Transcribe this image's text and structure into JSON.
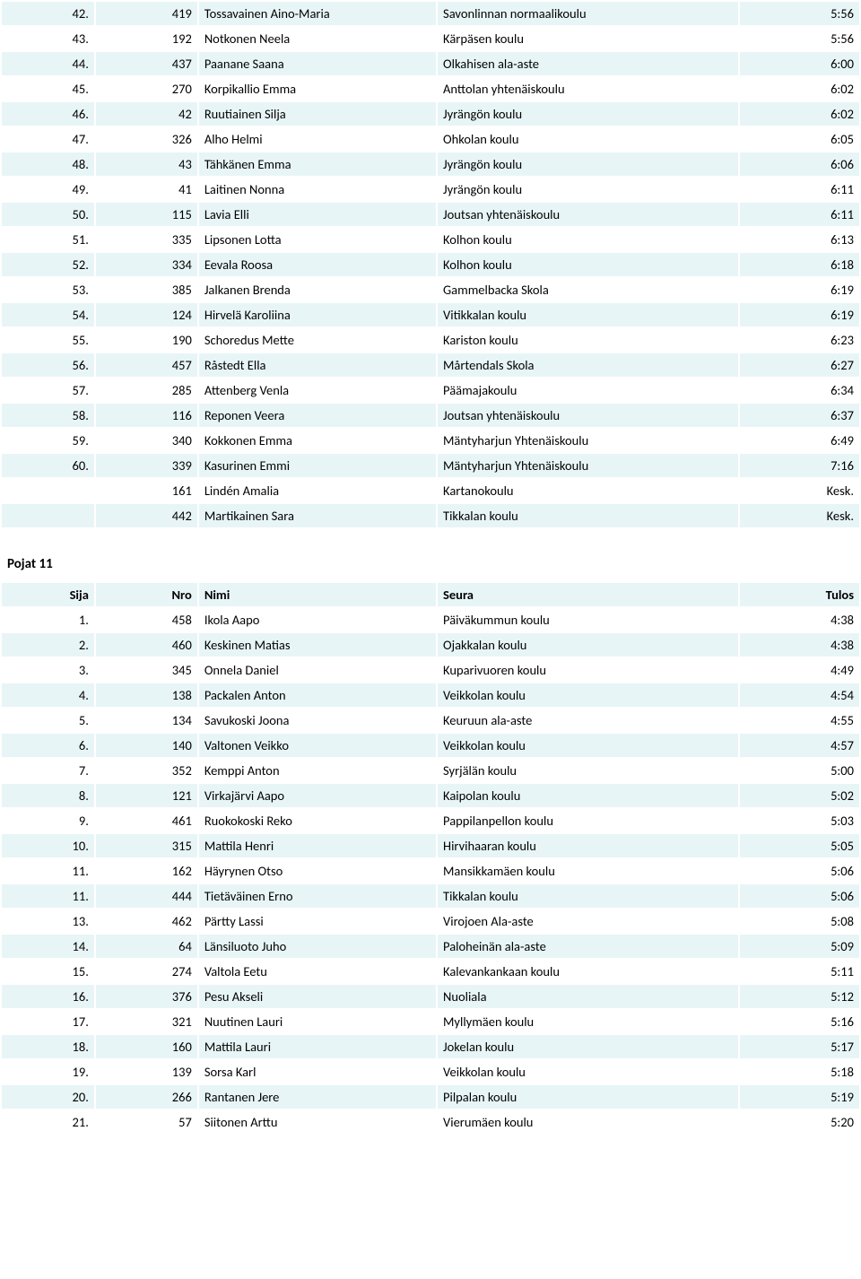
{
  "columns": {
    "sija": "Sija",
    "nro": "Nro",
    "nimi": "Nimi",
    "seura": "Seura",
    "tulos": "Tulos"
  },
  "section2_title": "Pojat 11",
  "table1": [
    {
      "sija": "42.",
      "nro": "419",
      "nimi": "Tossavainen Aino-Maria",
      "seura": "Savonlinnan normaalikoulu",
      "tulos": "5:56"
    },
    {
      "sija": "43.",
      "nro": "192",
      "nimi": "Notkonen Neela",
      "seura": "Kärpäsen koulu",
      "tulos": "5:56"
    },
    {
      "sija": "44.",
      "nro": "437",
      "nimi": "Paanane Saana",
      "seura": "Olkahisen ala-aste",
      "tulos": "6:00"
    },
    {
      "sija": "45.",
      "nro": "270",
      "nimi": "Korpikallio Emma",
      "seura": "Anttolan yhtenäiskoulu",
      "tulos": "6:02"
    },
    {
      "sija": "46.",
      "nro": "42",
      "nimi": "Ruutiainen Silja",
      "seura": "Jyrängön koulu",
      "tulos": "6:02"
    },
    {
      "sija": "47.",
      "nro": "326",
      "nimi": "Alho Helmi",
      "seura": "Ohkolan koulu",
      "tulos": "6:05"
    },
    {
      "sija": "48.",
      "nro": "43",
      "nimi": "Tähkänen Emma",
      "seura": "Jyrängön koulu",
      "tulos": "6:06"
    },
    {
      "sija": "49.",
      "nro": "41",
      "nimi": "Laitinen Nonna",
      "seura": "Jyrängön koulu",
      "tulos": "6:11"
    },
    {
      "sija": "50.",
      "nro": "115",
      "nimi": "Lavia Elli",
      "seura": "Joutsan yhtenäiskoulu",
      "tulos": "6:11"
    },
    {
      "sija": "51.",
      "nro": "335",
      "nimi": "Lipsonen Lotta",
      "seura": "Kolhon koulu",
      "tulos": "6:13"
    },
    {
      "sija": "52.",
      "nro": "334",
      "nimi": "Eevala Roosa",
      "seura": "Kolhon koulu",
      "tulos": "6:18"
    },
    {
      "sija": "53.",
      "nro": "385",
      "nimi": "Jalkanen Brenda",
      "seura": "Gammelbacka Skola",
      "tulos": "6:19"
    },
    {
      "sija": "54.",
      "nro": "124",
      "nimi": "Hirvelä Karoliina",
      "seura": "Vitikkalan koulu",
      "tulos": "6:19"
    },
    {
      "sija": "55.",
      "nro": "190",
      "nimi": "Schoredus Mette",
      "seura": "Kariston koulu",
      "tulos": "6:23"
    },
    {
      "sija": "56.",
      "nro": "457",
      "nimi": "Råstedt Ella",
      "seura": "Mårtendals Skola",
      "tulos": "6:27"
    },
    {
      "sija": "57.",
      "nro": "285",
      "nimi": "Attenberg Venla",
      "seura": "Päämajakoulu",
      "tulos": "6:34"
    },
    {
      "sija": "58.",
      "nro": "116",
      "nimi": "Reponen Veera",
      "seura": "Joutsan yhtenäiskoulu",
      "tulos": "6:37"
    },
    {
      "sija": "59.",
      "nro": "340",
      "nimi": "Kokkonen Emma",
      "seura": "Mäntyharjun Yhtenäiskoulu",
      "tulos": "6:49"
    },
    {
      "sija": "60.",
      "nro": "339",
      "nimi": "Kasurinen Emmi",
      "seura": "Mäntyharjun Yhtenäiskoulu",
      "tulos": "7:16"
    },
    {
      "sija": "",
      "nro": "161",
      "nimi": "Lindén Amalia",
      "seura": "Kartanokoulu",
      "tulos": "Kesk."
    },
    {
      "sija": "",
      "nro": "442",
      "nimi": "Martikainen Sara",
      "seura": "Tikkalan koulu",
      "tulos": "Kesk."
    }
  ],
  "table2": [
    {
      "sija": "1.",
      "nro": "458",
      "nimi": "Ikola Aapo",
      "seura": "Päiväkummun koulu",
      "tulos": "4:38"
    },
    {
      "sija": "2.",
      "nro": "460",
      "nimi": "Keskinen Matias",
      "seura": "Ojakkalan koulu",
      "tulos": "4:38"
    },
    {
      "sija": "3.",
      "nro": "345",
      "nimi": "Onnela Daniel",
      "seura": "Kuparivuoren koulu",
      "tulos": "4:49"
    },
    {
      "sija": "4.",
      "nro": "138",
      "nimi": "Packalen Anton",
      "seura": "Veikkolan koulu",
      "tulos": "4:54"
    },
    {
      "sija": "5.",
      "nro": "134",
      "nimi": "Savukoski Joona",
      "seura": "Keuruun ala-aste",
      "tulos": "4:55"
    },
    {
      "sija": "6.",
      "nro": "140",
      "nimi": "Valtonen Veikko",
      "seura": "Veikkolan koulu",
      "tulos": "4:57"
    },
    {
      "sija": "7.",
      "nro": "352",
      "nimi": "Kemppi Anton",
      "seura": "Syrjälän koulu",
      "tulos": "5:00"
    },
    {
      "sija": "8.",
      "nro": "121",
      "nimi": "Virkajärvi Aapo",
      "seura": "Kaipolan koulu",
      "tulos": "5:02"
    },
    {
      "sija": "9.",
      "nro": "461",
      "nimi": "Ruokokoski Reko",
      "seura": "Pappilanpellon koulu",
      "tulos": "5:03"
    },
    {
      "sija": "10.",
      "nro": "315",
      "nimi": "Mattila Henri",
      "seura": "Hirvihaaran koulu",
      "tulos": "5:05"
    },
    {
      "sija": "11.",
      "nro": "162",
      "nimi": "Häyrynen Otso",
      "seura": "Mansikkamäen koulu",
      "tulos": "5:06"
    },
    {
      "sija": "11.",
      "nro": "444",
      "nimi": "Tietäväinen Erno",
      "seura": "Tikkalan koulu",
      "tulos": "5:06"
    },
    {
      "sija": "13.",
      "nro": "462",
      "nimi": "Pärtty Lassi",
      "seura": "Virojoen Ala-aste",
      "tulos": "5:08"
    },
    {
      "sija": "14.",
      "nro": "64",
      "nimi": "Länsiluoto Juho",
      "seura": "Paloheinän ala-aste",
      "tulos": "5:09"
    },
    {
      "sija": "15.",
      "nro": "274",
      "nimi": "Valtola Eetu",
      "seura": "Kalevankankaan koulu",
      "tulos": "5:11"
    },
    {
      "sija": "16.",
      "nro": "376",
      "nimi": "Pesu Akseli",
      "seura": "Nuoliala",
      "tulos": "5:12"
    },
    {
      "sija": "17.",
      "nro": "321",
      "nimi": "Nuutinen Lauri",
      "seura": "Myllymäen koulu",
      "tulos": "5:16"
    },
    {
      "sija": "18.",
      "nro": "160",
      "nimi": "Mattila Lauri",
      "seura": "Jokelan koulu",
      "tulos": "5:17"
    },
    {
      "sija": "19.",
      "nro": "139",
      "nimi": "Sorsa Karl",
      "seura": "Veikkolan koulu",
      "tulos": "5:18"
    },
    {
      "sija": "20.",
      "nro": "266",
      "nimi": "Rantanen Jere",
      "seura": "Pilpalan koulu",
      "tulos": "5:19"
    },
    {
      "sija": "21.",
      "nro": "57",
      "nimi": "Siitonen Arttu",
      "seura": "Vierumäen koulu",
      "tulos": "5:20"
    }
  ]
}
